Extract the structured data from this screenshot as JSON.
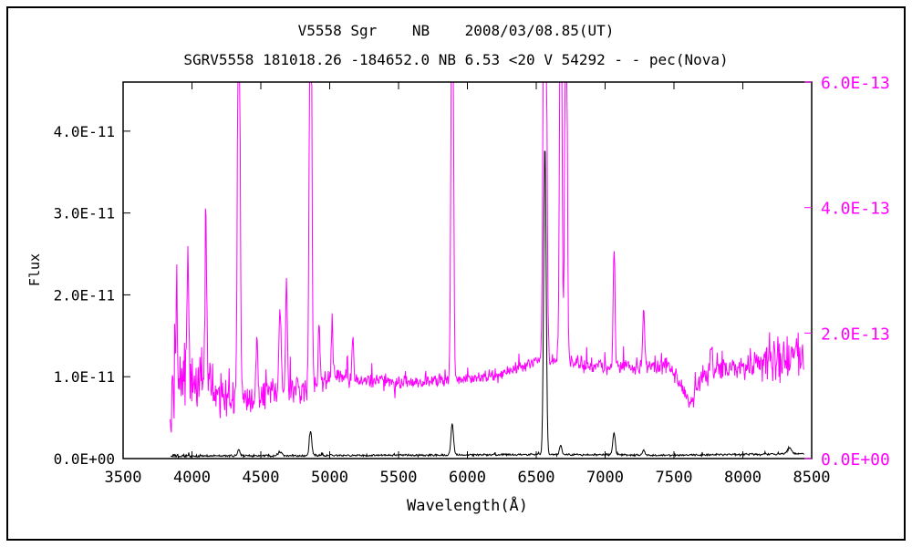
{
  "chart_data": {
    "type": "line",
    "title": "V5558 Sgr    NB    2008/03/08.85(UT)",
    "subtitle": "SGRV5558 181018.26 -184652.0 NB 6.53 <20 V 54292 - - pec(Nova)",
    "xlabel": "Wavelength(Å)",
    "ylabel": "Flux",
    "grid": false,
    "legend": "none",
    "x_range": [
      3500,
      8500
    ],
    "x_tick_values": [
      3500,
      4000,
      4500,
      5000,
      5500,
      6000,
      6500,
      7000,
      7500,
      8000,
      8500
    ],
    "x_tick_labels": [
      "3500",
      "4000",
      "4500",
      "5000",
      "5500",
      "6000",
      "6500",
      "7000",
      "7500",
      "8000",
      "8500"
    ],
    "left_axis": {
      "color": "#000000",
      "range": [
        0,
        4.6e-11
      ],
      "tick_values": [
        0,
        1e-11,
        2e-11,
        3e-11,
        4e-11
      ],
      "tick_labels": [
        "0.0E+00",
        "1.0E-11",
        "2.0E-11",
        "3.0E-11",
        "4.0E-11"
      ]
    },
    "right_axis": {
      "color": "#ff00ff",
      "range": [
        0,
        6e-13
      ],
      "tick_values": [
        0,
        2e-13,
        4e-13,
        6e-13
      ],
      "tick_labels": [
        "0.0E+00",
        "2.0E-13",
        "4.0E-13",
        "6.0E-13"
      ]
    },
    "series": [
      {
        "name": "flux-spectrum-black",
        "axis": "left",
        "color": "#000000",
        "x_start": 3845,
        "x_end": 8445,
        "continuum": [
          [
            3845,
            3e-13
          ],
          [
            4500,
            3.5e-13
          ],
          [
            5500,
            4e-13
          ],
          [
            6500,
            5e-13
          ],
          [
            7500,
            4e-13
          ],
          [
            8445,
            6e-13
          ]
        ],
        "noise": [
          [
            3845,
            2.5e-13
          ],
          [
            4100,
            1.5e-13
          ],
          [
            8445,
            1.5e-13
          ]
        ],
        "peaks": [
          [
            4340,
            7e-13,
            9
          ],
          [
            4640,
            5e-13,
            12
          ],
          [
            4861,
            3e-12,
            9
          ],
          [
            5890,
            3.8e-12,
            9
          ],
          [
            6563,
            3.8e-11,
            9
          ],
          [
            6678,
            1.2e-12,
            8
          ],
          [
            7065,
            2.7e-12,
            9
          ],
          [
            7280,
            6e-13,
            9
          ],
          [
            8340,
            7e-13,
            15
          ]
        ]
      },
      {
        "name": "scaled-spectrum-magenta",
        "axis": "right",
        "color": "#ff00ff",
        "x_start": 3842,
        "x_end": 8445,
        "continuum": [
          [
            3842,
            1.1e-13
          ],
          [
            3950,
            1.3e-13
          ],
          [
            4100,
            1.15e-13
          ],
          [
            4250,
            9.5e-14
          ],
          [
            4450,
            9.5e-14
          ],
          [
            4650,
            1.1e-13
          ],
          [
            4850,
            1.15e-13
          ],
          [
            5000,
            1.3e-13
          ],
          [
            5250,
            1.25e-13
          ],
          [
            5500,
            1.2e-13
          ],
          [
            5750,
            1.25e-13
          ],
          [
            6000,
            1.25e-13
          ],
          [
            6250,
            1.35e-13
          ],
          [
            6450,
            1.5e-13
          ],
          [
            6650,
            1.6e-13
          ],
          [
            6900,
            1.45e-13
          ],
          [
            7150,
            1.45e-13
          ],
          [
            7450,
            1.5e-13
          ],
          [
            7570,
            1.1e-13
          ],
          [
            7620,
            8e-14
          ],
          [
            7700,
            1.3e-13
          ],
          [
            7900,
            1.45e-13
          ],
          [
            8100,
            1.5e-13
          ],
          [
            8300,
            1.6e-13
          ],
          [
            8445,
            1.65e-13
          ]
        ],
        "noise": [
          [
            3842,
            1e-13
          ],
          [
            3900,
            9e-14
          ],
          [
            4000,
            5.5e-14
          ],
          [
            4150,
            4.5e-14
          ],
          [
            4350,
            3e-14
          ],
          [
            4600,
            2.5e-14
          ],
          [
            4900,
            2.2e-14
          ],
          [
            5300,
            1.5e-14
          ],
          [
            5800,
            1.1e-14
          ],
          [
            6300,
            1.2e-14
          ],
          [
            6800,
            1.3e-14
          ],
          [
            7300,
            1.6e-14
          ],
          [
            7700,
            2e-14
          ],
          [
            8000,
            2.5e-14
          ],
          [
            8250,
            4e-14
          ],
          [
            8445,
            4.5e-14
          ]
        ],
        "peaks": [
          [
            3889,
            1.6e-13,
            7
          ],
          [
            3970,
            2e-13,
            7
          ],
          [
            4101,
            2.6e-13,
            7
          ],
          [
            4340,
            9e-13,
            8
          ],
          [
            4471,
            9e-14,
            6
          ],
          [
            4640,
            1.2e-13,
            8
          ],
          [
            4686,
            1.8e-13,
            6
          ],
          [
            4861,
            9e-13,
            8
          ],
          [
            4923,
            1e-13,
            6
          ],
          [
            5018,
            9e-14,
            6
          ],
          [
            5169,
            6e-14,
            6
          ],
          [
            5890,
            9e-13,
            8
          ],
          [
            6563,
            1.2e-12,
            10
          ],
          [
            6678,
            8e-13,
            8
          ],
          [
            6716,
            8e-13,
            8
          ],
          [
            7065,
            1.9e-13,
            7
          ],
          [
            7280,
            9e-14,
            7
          ],
          [
            7772,
            5e-14,
            8
          ]
        ]
      }
    ]
  }
}
